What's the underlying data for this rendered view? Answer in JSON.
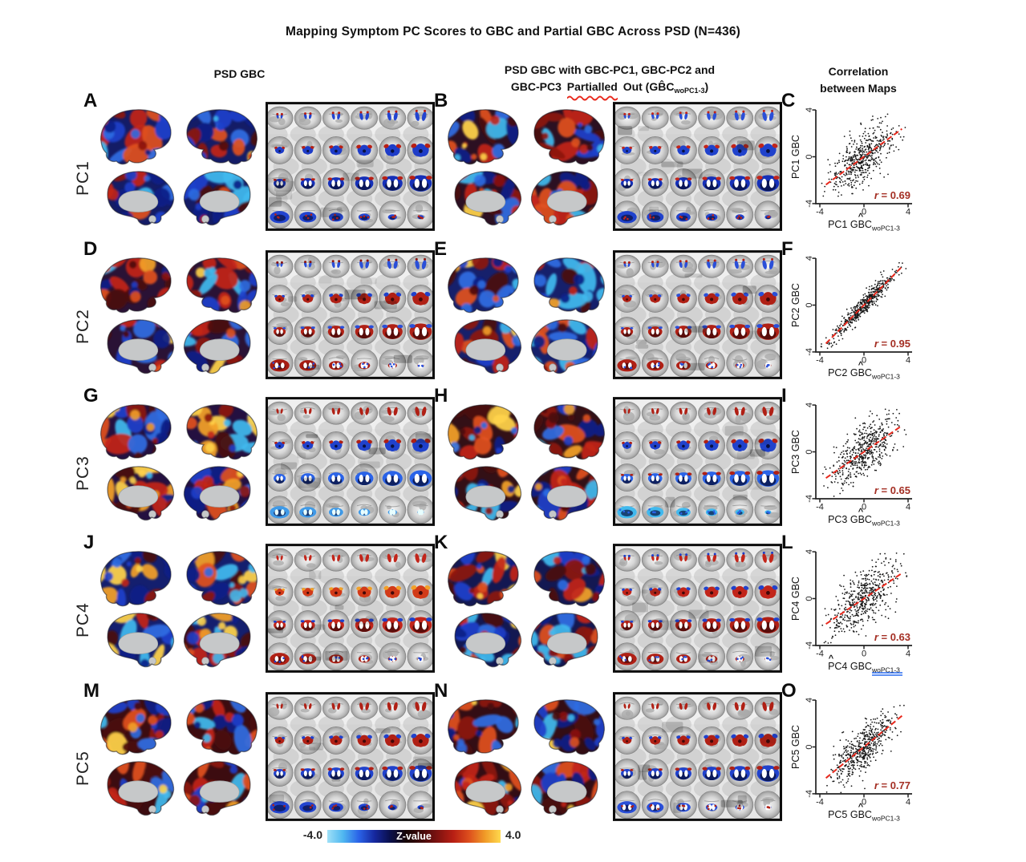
{
  "title": "Mapping Symptom PC Scores to GBC and Partial GBC Across PSD (N=436)",
  "headers": {
    "left": "PSD GBC",
    "middle_line1": "PSD GBC with GBC-PC1, GBC-PC2 and",
    "middle_line2_prefix": "GBC-PC3",
    "middle_line2_misspelled": "Partialled",
    "middle_line2_suffix": "Out (GB̂C",
    "middle_line2_subscript": "woPC1-3",
    "middle_line2_close": ")",
    "right_line1": "Correlation",
    "right_line2": "between Maps"
  },
  "rows": [
    {
      "label": "PC1",
      "panels": {
        "surface": "A",
        "partial": "B",
        "scatter": "C"
      },
      "r_symbol": "r",
      "r_tail": " = 0.69",
      "scatter_y_label": "PC1 GBC",
      "scatter_x_label": "PC1 GBC",
      "scatter_x_sub": "woPC1-3",
      "hat": "^",
      "art": {
        "surface_left": {
          "blue": 0.55,
          "red": 0.41,
          "yellow": 0.04,
          "base": "#141c66"
        },
        "surface_mid": {
          "blue": 0.47,
          "red": 0.49,
          "yellow": 0.04,
          "base": "#2c1022"
        },
        "volume_left": [
          [
            "#2244d0",
            "#b81f14",
            null
          ],
          [
            "#1e3cc8",
            "#b81f14",
            null
          ],
          [
            "#1530b8",
            "#b81f14",
            "#ffffff"
          ],
          [
            "#2244d0",
            "#b81f14",
            null
          ]
        ],
        "volume_mid": [
          [
            "#2a4fd8",
            "#c2251a",
            null
          ],
          [
            "#2042cc",
            "#c2251a",
            null
          ],
          [
            "#1530b8",
            "#c2251a",
            "#ffffff"
          ],
          [
            "#2042cc",
            "#c2251a",
            null
          ]
        ]
      }
    },
    {
      "label": "PC2",
      "panels": {
        "surface": "D",
        "partial": "E",
        "scatter": "F"
      },
      "r_symbol": "r",
      "r_tail": " = 0.95",
      "scatter_y_label": "PC2 GBC",
      "scatter_x_label": "PC2 GBC",
      "scatter_x_sub": "woPC1-3",
      "hat": "^",
      "art": {
        "surface_left": {
          "blue": 0.46,
          "red": 0.5,
          "yellow": 0.04,
          "base": "#2a1235"
        },
        "surface_mid": {
          "blue": 0.52,
          "red": 0.42,
          "yellow": 0.06,
          "base": "#16206b"
        },
        "volume_left": [
          [
            "#2a4fd8",
            "#8c130e",
            null
          ],
          [
            "#b02015",
            "#2042cc",
            null
          ],
          [
            "#b02015",
            "#2a4fd8",
            "#ffffff"
          ],
          [
            "#a81c12",
            "#2a4fd8",
            "#ffffff"
          ]
        ],
        "volume_mid": [
          [
            "#2a4fd8",
            "#b02015",
            null
          ],
          [
            "#b02015",
            "#2a4fd8",
            null
          ],
          [
            "#b02015",
            "#2a4fd8",
            "#ffffff"
          ],
          [
            "#b02015",
            "#2a4fd8",
            "#ffffff"
          ]
        ]
      }
    },
    {
      "label": "PC3",
      "panels": {
        "surface": "G",
        "partial": "H",
        "scatter": "I"
      },
      "r_symbol": "r",
      "r_tail": " = 0.65",
      "scatter_y_label": "PC3 GBC",
      "scatter_x_label": "PC3 GBC",
      "scatter_x_sub": "woPC1-3",
      "hat": "^",
      "art": {
        "surface_left": {
          "blue": 0.34,
          "red": 0.36,
          "yellow": 0.3,
          "base": "#241040"
        },
        "surface_mid": {
          "blue": 0.4,
          "red": 0.45,
          "yellow": 0.15,
          "base": "#331016"
        },
        "volume_left": [
          [
            "#b02015",
            null,
            null
          ],
          [
            "#2042cc",
            "#b02015",
            null
          ],
          [
            "#2a63e8",
            null,
            "#ffffff"
          ],
          [
            "#3f9ae8",
            null,
            "#e8ffff"
          ]
        ],
        "volume_mid": [
          [
            "#b02015",
            null,
            null
          ],
          [
            "#2042cc",
            "#b02015",
            null
          ],
          [
            "#2a63e8",
            "#b02015",
            "#ffffff"
          ],
          [
            "#41b9ee",
            "#2a63e8",
            null
          ]
        ]
      }
    },
    {
      "label": "PC4",
      "panels": {
        "surface": "J",
        "partial": "K",
        "scatter": "L"
      },
      "r_symbol": "r",
      "r_tail": " = 0.63",
      "scatter_y_label": "PC4 GBC",
      "scatter_x_label": "PC4 GBC",
      "scatter_x_sub": "woPC1-3",
      "hat": "^",
      "art": {
        "surface_left": {
          "blue": 0.42,
          "red": 0.42,
          "yellow": 0.16,
          "base": "#141f6e"
        },
        "surface_mid": {
          "blue": 0.49,
          "red": 0.46,
          "yellow": 0.05,
          "base": "#131852"
        },
        "volume_left": [
          [
            "#c2251a",
            null,
            null
          ],
          [
            "#d23a18",
            "#f2a028",
            null
          ],
          [
            "#c2251a",
            "#1d3fca",
            "#ffffff"
          ],
          [
            "#b02015",
            "#1d3fca",
            "#ffffff"
          ]
        ],
        "volume_mid": [
          [
            "#c2251a",
            "#1d3fca",
            null
          ],
          [
            "#c2251a",
            "#2042cc",
            null
          ],
          [
            "#b02015",
            "#2042cc",
            "#ffffff"
          ],
          [
            "#b02015",
            "#2a4fd8",
            "#ffffff"
          ]
        ]
      }
    },
    {
      "label": "PC5",
      "panels": {
        "surface": "M",
        "partial": "N",
        "scatter": "O"
      },
      "r_symbol": "r",
      "r_tail": " = 0.77",
      "scatter_y_label": "PC5 GBC",
      "scatter_x_label": "PC5 GBC",
      "scatter_x_sub": "woPC1-3",
      "hat": "^",
      "art": {
        "surface_left": {
          "blue": 0.37,
          "red": 0.55,
          "yellow": 0.08,
          "base": "#3c0c10"
        },
        "surface_mid": {
          "blue": 0.42,
          "red": 0.5,
          "yellow": 0.08,
          "base": "#330d14"
        },
        "volume_left": [
          [
            "#b02015",
            null,
            null
          ],
          [
            "#b02015",
            "#2042cc",
            null
          ],
          [
            "#2042cc",
            "#b02015",
            "#ffffff"
          ],
          [
            "#2244d0",
            "#b02015",
            null
          ]
        ],
        "volume_mid": [
          [
            "#b02015",
            null,
            null
          ],
          [
            "#b02015",
            "#2042cc",
            null
          ],
          [
            "#2042cc",
            "#b02015",
            "#ffffff"
          ],
          [
            "#2a4fd8",
            "#b02015",
            "#ffffff"
          ]
        ]
      }
    }
  ],
  "colorbar": {
    "min_label": "-4.0",
    "max_label": "4.0",
    "title": "Z-value",
    "min": -4.0,
    "max": 4.0,
    "gradient": [
      "#9fe0f7",
      "#4fb7f0",
      "#2a63e8",
      "#16289e",
      "#0a0f4a",
      "#160606",
      "#420b0b",
      "#7e1210",
      "#b81f14",
      "#dd4f1d",
      "#f09a28",
      "#ffd94e"
    ]
  },
  "chart_data": [
    {
      "type": "scatter",
      "panel": "C",
      "xlabel": "PC1 ĜBC_woPC1-3",
      "ylabel": "PC1 GBC",
      "xlim": [
        -4,
        4
      ],
      "ylim": [
        -4,
        4
      ],
      "xticks": [
        -4,
        0,
        4
      ],
      "yticks": [
        -4,
        0,
        4
      ],
      "r": 0.69,
      "annotation": "r = 0.69",
      "annotation_color": "#a42f24",
      "fit_line": {
        "slope": 0.69,
        "intercept": 0,
        "color": "#e8281c",
        "style": "dashed"
      },
      "points": "dense black point cloud (~2000 parcels), procedurally approximated",
      "grid": false,
      "legend": "none"
    },
    {
      "type": "scatter",
      "panel": "F",
      "xlabel": "PC2 ĜBC_woPC1-3",
      "ylabel": "PC2 GBC",
      "xlim": [
        -4,
        4
      ],
      "ylim": [
        -4,
        4
      ],
      "xticks": [
        -4,
        0,
        4
      ],
      "yticks": [
        -4,
        0,
        4
      ],
      "r": 0.95,
      "annotation": "r = 0.95",
      "annotation_color": "#a42f24",
      "fit_line": {
        "slope": 0.95,
        "intercept": 0,
        "color": "#e8281c",
        "style": "dashed"
      },
      "points": "dense black point cloud (~2000 parcels), procedurally approximated",
      "grid": false,
      "legend": "none"
    },
    {
      "type": "scatter",
      "panel": "I",
      "xlabel": "PC3 ĜBC_woPC1-3",
      "ylabel": "PC3 GBC",
      "xlim": [
        -4,
        4
      ],
      "ylim": [
        -4,
        4
      ],
      "xticks": [
        -4,
        0,
        4
      ],
      "yticks": [
        -4,
        0,
        4
      ],
      "r": 0.65,
      "annotation": "r = 0.65",
      "annotation_color": "#a42f24",
      "fit_line": {
        "slope": 0.65,
        "intercept": 0,
        "color": "#e8281c",
        "style": "dashed"
      },
      "points": "dense black point cloud (~2000 parcels), procedurally approximated",
      "grid": false,
      "legend": "none"
    },
    {
      "type": "scatter",
      "panel": "L",
      "xlabel": "PC4 ĜBC_woPC1-3",
      "ylabel": "PC4 GBC",
      "xlim": [
        -4,
        4
      ],
      "ylim": [
        -4,
        4
      ],
      "xticks": [
        -4,
        0,
        4
      ],
      "yticks": [
        -4,
        0,
        4
      ],
      "r": 0.63,
      "annotation": "r = 0.63",
      "annotation_color": "#a42f24",
      "fit_line": {
        "slope": 0.63,
        "intercept": 0,
        "color": "#e8281c",
        "style": "dashed"
      },
      "points": "dense black point cloud (~2000 parcels), procedurally approximated",
      "grid": false,
      "legend": "none"
    },
    {
      "type": "scatter",
      "panel": "O",
      "xlabel": "PC5 ĜBC_woPC1-3",
      "ylabel": "PC5 GBC",
      "xlim": [
        -4,
        4
      ],
      "ylim": [
        -4,
        4
      ],
      "xticks": [
        -4,
        0,
        4
      ],
      "yticks": [
        -4,
        0,
        4
      ],
      "r": 0.77,
      "annotation": "r = 0.77",
      "annotation_color": "#a42f24",
      "fit_line": {
        "slope": 0.77,
        "intercept": 0,
        "color": "#e8281c",
        "style": "dashed"
      },
      "points": "dense black point cloud (~2000 parcels), procedurally approximated",
      "grid": false,
      "legend": "none"
    }
  ]
}
